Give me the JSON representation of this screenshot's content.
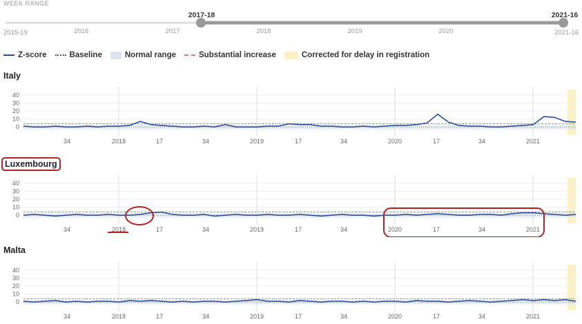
{
  "week_range": {
    "label": "WEEK RANGE",
    "start_label": "2017-18",
    "end_label": "2021-16",
    "min_label": "2015-19",
    "max_label": "2021-16",
    "year_ticks": [
      "2016",
      "2017",
      "2018",
      "2019",
      "2020"
    ]
  },
  "legend": {
    "zscore": "Z-score",
    "baseline": "Baseline",
    "normal_range": "Normal range",
    "substantial": "Substantial increase",
    "corrected": "Corrected for delay in registration"
  },
  "colors": {
    "line": "#2b4c9a",
    "substantial": "#e07a7a",
    "normal_range": "#dbe5f0",
    "corrected": "#fbf1c4",
    "annotation": "#b3201f"
  },
  "chart_data": [
    {
      "type": "line",
      "title": "Italy",
      "yticks": [
        0,
        10,
        20,
        30,
        40
      ],
      "ylim": [
        -5,
        45
      ],
      "xticks": [
        "34",
        "2018",
        "17",
        "34",
        "2019",
        "17",
        "34",
        "2020",
        "17",
        "34",
        "2021"
      ],
      "series": [
        {
          "name": "Z-score",
          "x": [
            0,
            4,
            8,
            12,
            16,
            20,
            24,
            28,
            32,
            36,
            40,
            44,
            48,
            52,
            56,
            60,
            64,
            68,
            72,
            76,
            80,
            84,
            88,
            92,
            96,
            100,
            104,
            108,
            112,
            116,
            120,
            124,
            128,
            132,
            136,
            140,
            144,
            148,
            152,
            156,
            160,
            164,
            168,
            172,
            176,
            180,
            184,
            188,
            192,
            196,
            200,
            204,
            208
          ],
          "values": [
            1,
            0,
            0,
            1,
            0,
            0,
            1,
            0,
            1,
            1,
            2,
            7,
            3,
            2,
            1,
            0,
            0,
            1,
            0,
            3,
            0,
            0,
            0,
            1,
            1,
            4,
            3,
            3,
            1,
            1,
            0,
            0,
            1,
            0,
            1,
            2,
            2,
            3,
            5,
            16,
            6,
            2,
            1,
            1,
            0,
            0,
            1,
            2,
            3,
            13,
            12,
            7,
            6
          ]
        }
      ],
      "baseline": 0,
      "substantial_threshold": 4
    },
    {
      "type": "line",
      "title": "Luxembourg",
      "yticks": [
        0,
        10,
        20,
        30,
        40
      ],
      "ylim": [
        -5,
        45
      ],
      "xticks": [
        "34",
        "2018",
        "17",
        "34",
        "2019",
        "17",
        "34",
        "2020",
        "17",
        "34",
        "2021"
      ],
      "series": [
        {
          "name": "Z-score",
          "x": [
            0,
            4,
            8,
            12,
            16,
            20,
            24,
            28,
            32,
            36,
            40,
            44,
            48,
            52,
            56,
            60,
            64,
            68,
            72,
            76,
            80,
            84,
            88,
            92,
            96,
            100,
            104,
            108,
            112,
            116,
            120,
            124,
            128,
            132,
            136,
            140,
            144,
            148,
            152,
            156,
            160,
            164,
            168,
            172,
            176,
            180,
            184,
            188,
            192,
            196,
            200,
            204,
            208
          ],
          "values": [
            0,
            1,
            0,
            -1,
            0,
            1,
            0,
            0,
            1,
            0,
            0,
            1,
            3,
            4,
            1,
            0,
            0,
            1,
            -1,
            0,
            1,
            0,
            0,
            1,
            0,
            0,
            1,
            0,
            -1,
            0,
            1,
            0,
            0,
            -1,
            0,
            0,
            1,
            0,
            1,
            2,
            1,
            0,
            0,
            1,
            1,
            0,
            2,
            3,
            3,
            2,
            1,
            0,
            1
          ]
        }
      ],
      "baseline": 0,
      "substantial_threshold": 4
    },
    {
      "type": "line",
      "title": "Malta",
      "yticks": [
        0,
        10,
        20,
        30,
        40
      ],
      "ylim": [
        -5,
        45
      ],
      "xticks": [
        "34",
        "2018",
        "17",
        "34",
        "2019",
        "17",
        "34",
        "2020",
        "17",
        "34",
        "2021"
      ],
      "series": [
        {
          "name": "Z-score",
          "x": [
            0,
            4,
            8,
            12,
            16,
            20,
            24,
            28,
            32,
            36,
            40,
            44,
            48,
            52,
            56,
            60,
            64,
            68,
            72,
            76,
            80,
            84,
            88,
            92,
            96,
            100,
            104,
            108,
            112,
            116,
            120,
            124,
            128,
            132,
            136,
            140,
            144,
            148,
            152,
            156,
            160,
            164,
            168,
            172,
            176,
            180,
            184,
            188,
            192,
            196,
            200,
            204,
            208
          ],
          "values": [
            1,
            0,
            1,
            2,
            0,
            1,
            0,
            1,
            1,
            0,
            2,
            1,
            2,
            1,
            0,
            1,
            0,
            1,
            1,
            0,
            1,
            2,
            3,
            1,
            1,
            0,
            2,
            1,
            0,
            1,
            1,
            0,
            1,
            0,
            1,
            1,
            0,
            2,
            1,
            1,
            0,
            1,
            2,
            1,
            0,
            1,
            2,
            3,
            2,
            3,
            2,
            3,
            1
          ]
        }
      ],
      "baseline": 0,
      "substantial_threshold": 4
    }
  ]
}
